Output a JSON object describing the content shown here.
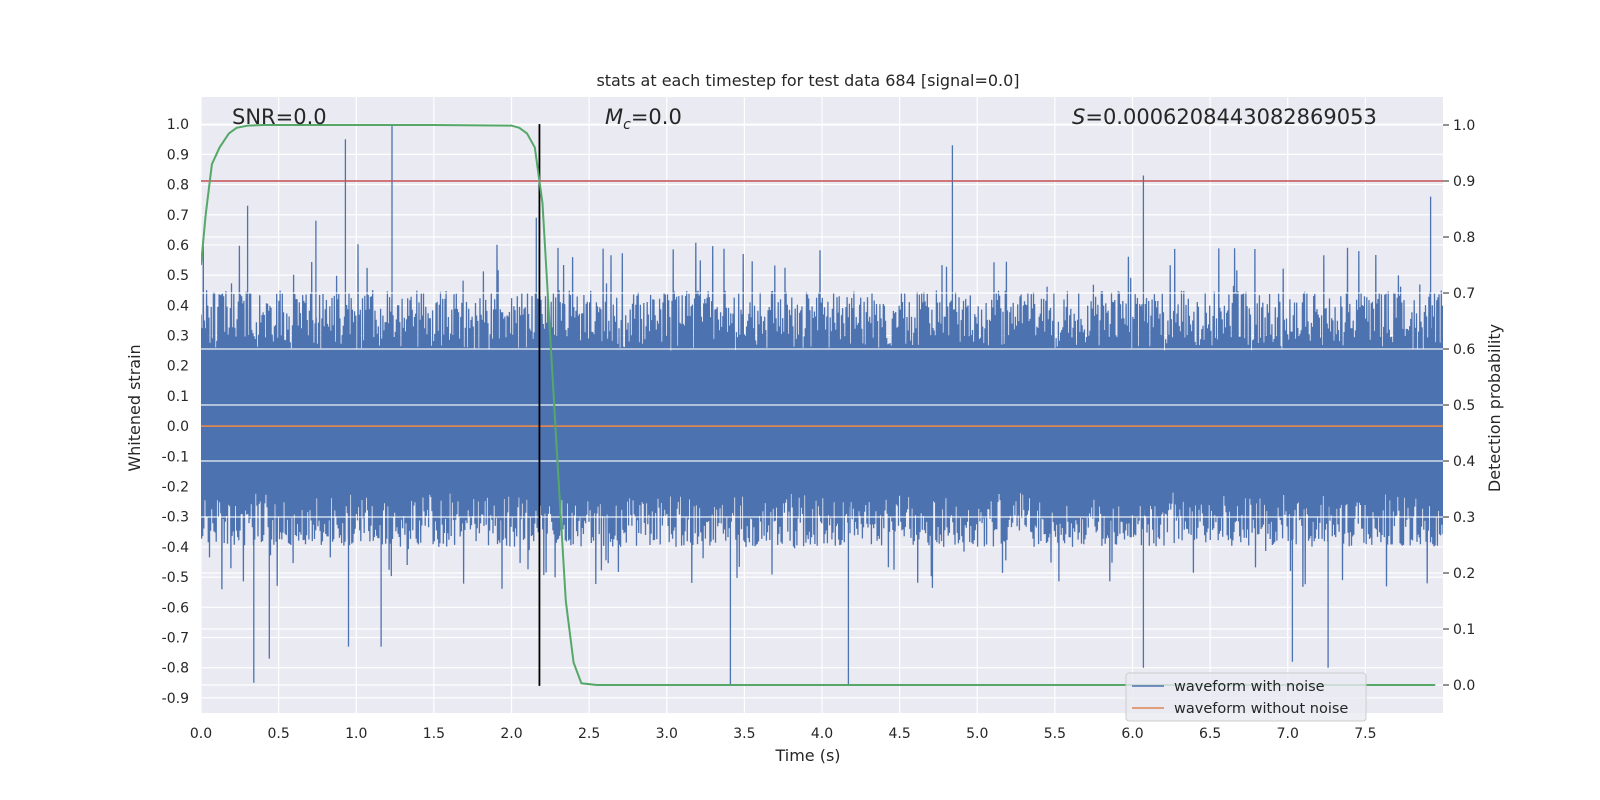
{
  "chart_data": {
    "type": "line",
    "title": "stats at each timestep for test data 684 [signal=0.0]",
    "xlabel": "Time (s)",
    "ylabel": "Whitened strain",
    "ylabel_right": "Detection probability",
    "xlim": [
      0.0,
      8.0
    ],
    "ylim": [
      -0.95,
      1.09
    ],
    "ylim_right": [
      -0.05,
      1.05
    ],
    "xticks": [
      "0.0",
      "0.5",
      "1.0",
      "1.5",
      "2.0",
      "2.5",
      "3.0",
      "3.5",
      "4.0",
      "4.5",
      "5.0",
      "5.5",
      "6.0",
      "6.5",
      "7.0",
      "7.5"
    ],
    "yticks": [
      "1.0",
      "0.9",
      "0.8",
      "0.7",
      "0.6",
      "0.5",
      "0.4",
      "0.3",
      "0.2",
      "0.1",
      "0.0",
      "-0.1",
      "-0.2",
      "-0.3",
      "-0.4",
      "-0.5",
      "-0.6",
      "-0.7",
      "-0.8",
      "-0.9"
    ],
    "yticks_right": [
      "1.0",
      "0.9",
      "0.8",
      "0.7",
      "0.6",
      "0.5",
      "0.4",
      "0.3",
      "0.2",
      "0.1",
      "0.0"
    ],
    "grid": true,
    "legend_position": "bottom-right",
    "annotations": {
      "snr": "SNR=0.0",
      "mc_symbol": "M",
      "mc_sub": "c",
      "mc_value": "=0.0",
      "s_symbol": "S",
      "s_value": "=0.0006208443082869053"
    },
    "colors": {
      "noise": "#4c72b0",
      "clean": "#dd8452",
      "probability": "#55a868",
      "threshold": "#c44e52",
      "marker": "#000000",
      "background": "#eaeaf2",
      "grid": "#ffffff"
    },
    "series": [
      {
        "name": "waveform with noise",
        "axis": "left",
        "envelope": {
          "upper_typical": 0.45,
          "lower_typical": -0.4,
          "peaks": [
            {
              "x": 0.3,
              "y": 0.73
            },
            {
              "x": 0.34,
              "y": -0.85
            },
            {
              "x": 0.44,
              "y": -0.77
            },
            {
              "x": 0.74,
              "y": 0.68
            },
            {
              "x": 0.93,
              "y": 0.95
            },
            {
              "x": 0.95,
              "y": -0.73
            },
            {
              "x": 1.16,
              "y": -0.73
            },
            {
              "x": 1.23,
              "y": 1.0
            },
            {
              "x": 2.16,
              "y": 0.69
            },
            {
              "x": 3.41,
              "y": -0.86
            },
            {
              "x": 4.17,
              "y": -0.86
            },
            {
              "x": 4.84,
              "y": 0.93
            },
            {
              "x": 6.07,
              "y": 0.83
            },
            {
              "x": 6.07,
              "y": -0.8
            },
            {
              "x": 7.03,
              "y": -0.78
            },
            {
              "x": 7.26,
              "y": -0.8
            },
            {
              "x": 7.92,
              "y": 0.76
            }
          ]
        }
      },
      {
        "name": "waveform without noise",
        "axis": "left",
        "x": [
          0.0,
          8.0
        ],
        "y": [
          0.0,
          0.0
        ]
      },
      {
        "name": "Detection probability",
        "axis": "right",
        "x": [
          0.0,
          0.03,
          0.07,
          0.12,
          0.18,
          0.23,
          0.3,
          0.4,
          0.6,
          1.0,
          1.5,
          2.0,
          2.05,
          2.1,
          2.15,
          2.2,
          2.25,
          2.3,
          2.35,
          2.4,
          2.45,
          2.55,
          3.0,
          5.0,
          7.95
        ],
        "y": [
          0.75,
          0.84,
          0.93,
          0.96,
          0.985,
          0.995,
          0.999,
          1.0,
          1.0,
          1.0,
          1.0,
          0.999,
          0.995,
          0.985,
          0.96,
          0.86,
          0.62,
          0.38,
          0.15,
          0.04,
          0.003,
          0.0,
          0.0,
          0.0,
          0.0
        ]
      }
    ],
    "threshold_right": 0.9,
    "vertical_marker_x": 2.18,
    "vertical_marker_range": [
      -0.86,
      1.0
    ]
  }
}
